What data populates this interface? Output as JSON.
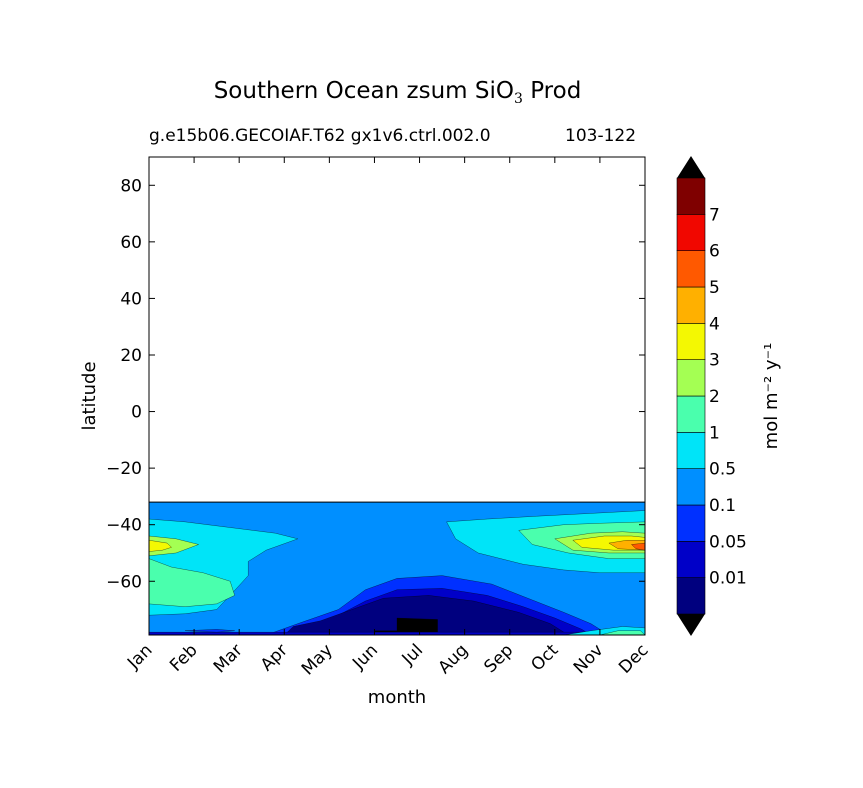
{
  "title_main": "Southern Ocean zsum SiO",
  "title_sub": "3",
  "title_end": " Prod",
  "subtitle_left": "g.e15b06.GECOIAF.T62 gx1v6.ctrl.002.0",
  "subtitle_right": "103-122",
  "colorbar_label": "mol m⁻² y⁻¹",
  "colors": {
    "white": "#ffffff",
    "black": "#000000",
    "levels": [
      "#00007f",
      "#0000c8",
      "#0030ff",
      "#008fff",
      "#00e4f8",
      "#4affad",
      "#a4ff53",
      "#f4f802",
      "#ffb000",
      "#ff5900",
      "#f10700",
      "#7f0000"
    ]
  },
  "chart_data": {
    "type": "heatmap",
    "title": "Southern Ocean zsum SiO3 Prod",
    "subtitle": "g.e15b06.GECOIAF.T62 gx1v6.ctrl.002.0   103-122",
    "xlabel": "month",
    "ylabel": "latitude",
    "x_ticks": [
      "Jan",
      "Feb",
      "Mar",
      "Apr",
      "May",
      "Jun",
      "Jul",
      "Aug",
      "Sep",
      "Oct",
      "Nov",
      "Dec"
    ],
    "y_ticks": [
      80,
      60,
      40,
      20,
      0,
      -20,
      -40,
      -60
    ],
    "y_tick_labels": [
      "80",
      "60",
      "40",
      "20",
      "0",
      "−20",
      "−40",
      "−60"
    ],
    "ylim": [
      -79,
      90
    ],
    "data_lat_range": [
      -79,
      -32
    ],
    "colorbar": {
      "label": "mol m-2 y-1",
      "levels": [
        0.01,
        0.05,
        0.1,
        0.5,
        1,
        2,
        3,
        4,
        5,
        6,
        7
      ],
      "level_labels": [
        "0.01",
        "0.05",
        "0.1",
        "0.5",
        "1",
        "2",
        "3",
        "4",
        "5",
        "6",
        "7"
      ],
      "extend": "both"
    },
    "contour_regions": [
      {
        "level_index": 3,
        "desc": "0.1-0.5 band covering -32 to -79 latitude"
      },
      {
        "level_index": 2,
        "desc": "0.05-0.1 region, Apr-Oct, south of -60"
      },
      {
        "level_index": 1,
        "desc": "0.01-0.05 region, May-Oct, south of -63"
      },
      {
        "level_index": 0,
        "desc": "below 0.01, Jun-Jul, near -73"
      },
      {
        "level_index": 4,
        "desc": "0.5-1, Jan-Apr -40 to -55 and Sep-Dec -38 to -57"
      },
      {
        "level_index": 5,
        "desc": "1-2, Jan-Feb -58 to -72 and Oct-Dec -40 to -52"
      },
      {
        "level_index": 6,
        "desc": "2-3, Jan near -47 and Nov-Dec near -46"
      },
      {
        "level_index": 7,
        "desc": "3-4, Jan near -47 and Nov-Dec near -46"
      },
      {
        "level_index": 8,
        "desc": "4-5, Dec near -47"
      },
      {
        "level_index": 9,
        "desc": "5-6, Dec edge near -48"
      }
    ]
  }
}
